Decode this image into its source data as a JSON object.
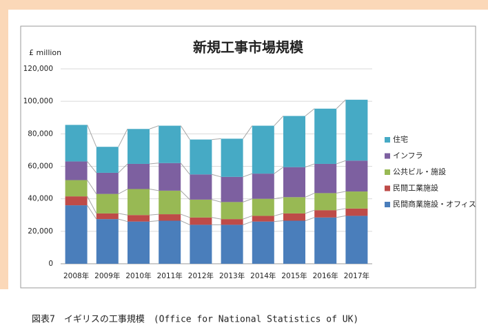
{
  "caption": "図表7　イギリスの工事規模　(Office for National Statistics of UK)",
  "chart_data": {
    "type": "stacked_bar",
    "title": "新規工事市場規模",
    "y_label": "£ million",
    "categories": [
      "2008年",
      "2009年",
      "2010年",
      "2011年",
      "2012年",
      "2013年",
      "2014年",
      "2015年",
      "2016年",
      "2017年"
    ],
    "series": [
      {
        "name": "民間商業施設・オフィス",
        "color": "#4a7ebb",
        "values": [
          36000,
          27500,
          26000,
          26500,
          24000,
          24000,
          26000,
          26500,
          28500,
          29500
        ]
      },
      {
        "name": "民間工業施設",
        "color": "#be4b48",
        "values": [
          5500,
          3500,
          4000,
          4000,
          4500,
          3500,
          3500,
          4500,
          4500,
          4500
        ]
      },
      {
        "name": "公共ビル・施設",
        "color": "#98b954",
        "values": [
          10000,
          12000,
          16000,
          14500,
          11000,
          10500,
          10500,
          10000,
          10500,
          10500
        ]
      },
      {
        "name": "インフラ",
        "color": "#7d60a0",
        "values": [
          11500,
          13000,
          15500,
          17000,
          15500,
          15500,
          15500,
          18500,
          18000,
          19000
        ]
      },
      {
        "name": "住宅",
        "color": "#46aac5",
        "values": [
          22500,
          16000,
          21500,
          23000,
          21500,
          23500,
          29500,
          31500,
          34000,
          37500
        ]
      }
    ],
    "ylim": [
      0,
      120000
    ],
    "yticks": [
      0,
      {
        "value": 20000,
        "label": "20,000"
      },
      {
        "value": 40000,
        "label": "40,000"
      },
      {
        "value": 60000,
        "label": "60,000"
      },
      {
        "value": 80000,
        "label": "80,000"
      },
      {
        "value": 100000,
        "label": "100,000"
      },
      {
        "value": 120000,
        "label": "120,000"
      }
    ],
    "grid": true,
    "legend": "right"
  }
}
